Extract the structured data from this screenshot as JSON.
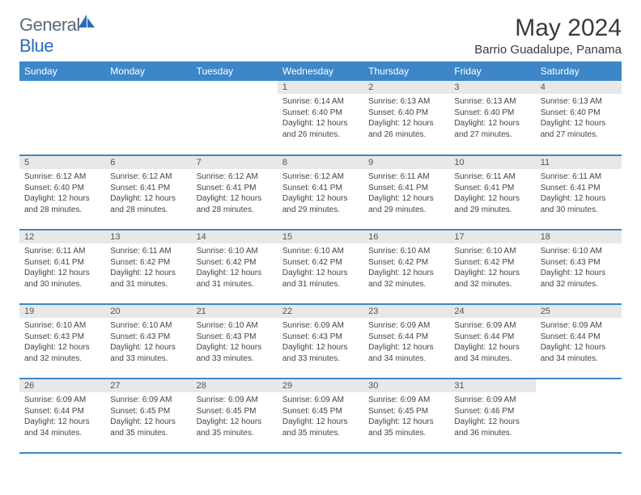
{
  "brand": {
    "name_part1": "General",
    "name_part2": "Blue",
    "logo_color": "#2a6db8",
    "text_color": "#5a6b7a"
  },
  "title": "May 2024",
  "location": "Barrio Guadalupe, Panama",
  "colors": {
    "header_bg": "#3d87c9",
    "header_fg": "#ffffff",
    "daynum_bg": "#e8e8e8",
    "border": "#3d87c9",
    "text": "#333333"
  },
  "day_labels": [
    "Sunday",
    "Monday",
    "Tuesday",
    "Wednesday",
    "Thursday",
    "Friday",
    "Saturday"
  ],
  "weeks": [
    [
      null,
      null,
      null,
      {
        "n": "1",
        "sr": "6:14 AM",
        "ss": "6:40 PM",
        "dl": "12 hours and 26 minutes."
      },
      {
        "n": "2",
        "sr": "6:13 AM",
        "ss": "6:40 PM",
        "dl": "12 hours and 26 minutes."
      },
      {
        "n": "3",
        "sr": "6:13 AM",
        "ss": "6:40 PM",
        "dl": "12 hours and 27 minutes."
      },
      {
        "n": "4",
        "sr": "6:13 AM",
        "ss": "6:40 PM",
        "dl": "12 hours and 27 minutes."
      }
    ],
    [
      {
        "n": "5",
        "sr": "6:12 AM",
        "ss": "6:40 PM",
        "dl": "12 hours and 28 minutes."
      },
      {
        "n": "6",
        "sr": "6:12 AM",
        "ss": "6:41 PM",
        "dl": "12 hours and 28 minutes."
      },
      {
        "n": "7",
        "sr": "6:12 AM",
        "ss": "6:41 PM",
        "dl": "12 hours and 28 minutes."
      },
      {
        "n": "8",
        "sr": "6:12 AM",
        "ss": "6:41 PM",
        "dl": "12 hours and 29 minutes."
      },
      {
        "n": "9",
        "sr": "6:11 AM",
        "ss": "6:41 PM",
        "dl": "12 hours and 29 minutes."
      },
      {
        "n": "10",
        "sr": "6:11 AM",
        "ss": "6:41 PM",
        "dl": "12 hours and 29 minutes."
      },
      {
        "n": "11",
        "sr": "6:11 AM",
        "ss": "6:41 PM",
        "dl": "12 hours and 30 minutes."
      }
    ],
    [
      {
        "n": "12",
        "sr": "6:11 AM",
        "ss": "6:41 PM",
        "dl": "12 hours and 30 minutes."
      },
      {
        "n": "13",
        "sr": "6:11 AM",
        "ss": "6:42 PM",
        "dl": "12 hours and 31 minutes."
      },
      {
        "n": "14",
        "sr": "6:10 AM",
        "ss": "6:42 PM",
        "dl": "12 hours and 31 minutes."
      },
      {
        "n": "15",
        "sr": "6:10 AM",
        "ss": "6:42 PM",
        "dl": "12 hours and 31 minutes."
      },
      {
        "n": "16",
        "sr": "6:10 AM",
        "ss": "6:42 PM",
        "dl": "12 hours and 32 minutes."
      },
      {
        "n": "17",
        "sr": "6:10 AM",
        "ss": "6:42 PM",
        "dl": "12 hours and 32 minutes."
      },
      {
        "n": "18",
        "sr": "6:10 AM",
        "ss": "6:43 PM",
        "dl": "12 hours and 32 minutes."
      }
    ],
    [
      {
        "n": "19",
        "sr": "6:10 AM",
        "ss": "6:43 PM",
        "dl": "12 hours and 32 minutes."
      },
      {
        "n": "20",
        "sr": "6:10 AM",
        "ss": "6:43 PM",
        "dl": "12 hours and 33 minutes."
      },
      {
        "n": "21",
        "sr": "6:10 AM",
        "ss": "6:43 PM",
        "dl": "12 hours and 33 minutes."
      },
      {
        "n": "22",
        "sr": "6:09 AM",
        "ss": "6:43 PM",
        "dl": "12 hours and 33 minutes."
      },
      {
        "n": "23",
        "sr": "6:09 AM",
        "ss": "6:44 PM",
        "dl": "12 hours and 34 minutes."
      },
      {
        "n": "24",
        "sr": "6:09 AM",
        "ss": "6:44 PM",
        "dl": "12 hours and 34 minutes."
      },
      {
        "n": "25",
        "sr": "6:09 AM",
        "ss": "6:44 PM",
        "dl": "12 hours and 34 minutes."
      }
    ],
    [
      {
        "n": "26",
        "sr": "6:09 AM",
        "ss": "6:44 PM",
        "dl": "12 hours and 34 minutes."
      },
      {
        "n": "27",
        "sr": "6:09 AM",
        "ss": "6:45 PM",
        "dl": "12 hours and 35 minutes."
      },
      {
        "n": "28",
        "sr": "6:09 AM",
        "ss": "6:45 PM",
        "dl": "12 hours and 35 minutes."
      },
      {
        "n": "29",
        "sr": "6:09 AM",
        "ss": "6:45 PM",
        "dl": "12 hours and 35 minutes."
      },
      {
        "n": "30",
        "sr": "6:09 AM",
        "ss": "6:45 PM",
        "dl": "12 hours and 35 minutes."
      },
      {
        "n": "31",
        "sr": "6:09 AM",
        "ss": "6:46 PM",
        "dl": "12 hours and 36 minutes."
      },
      null
    ]
  ],
  "labels": {
    "sunrise": "Sunrise:",
    "sunset": "Sunset:",
    "daylight": "Daylight:"
  }
}
